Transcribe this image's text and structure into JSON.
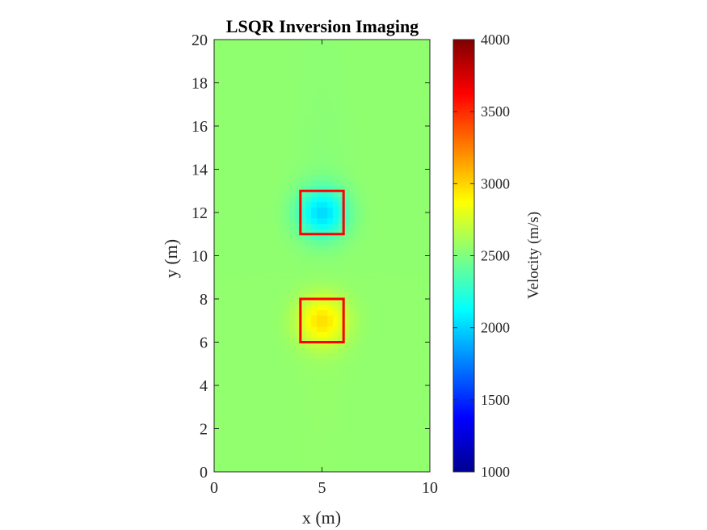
{
  "chart_data": {
    "type": "heatmap",
    "title": "LSQR Inversion Imaging",
    "xlabel": "x (m)",
    "ylabel": "y (m)",
    "xlim": [
      0,
      10
    ],
    "ylim": [
      0,
      20
    ],
    "x_ticks": [
      "0",
      "5",
      "10"
    ],
    "y_ticks": [
      "0",
      "2",
      "4",
      "6",
      "8",
      "10",
      "12",
      "14",
      "16",
      "18",
      "20"
    ],
    "colorbar": {
      "label": "Velocity (m/s)",
      "clim": [
        1000,
        4000
      ],
      "ticks": [
        "1000",
        "1500",
        "2000",
        "2500",
        "3000",
        "3500",
        "4000"
      ],
      "colormap": "jet"
    },
    "background_velocity": 2550,
    "anomalies": [
      {
        "center": [
          5,
          12
        ],
        "peak_velocity": 2050,
        "box": {
          "x": [
            4,
            6
          ],
          "y": [
            11,
            13
          ]
        }
      },
      {
        "center": [
          5,
          7
        ],
        "peak_velocity": 2950,
        "box": {
          "x": [
            4,
            6
          ],
          "y": [
            6,
            8
          ]
        }
      }
    ],
    "outline_color": "#ff0000"
  }
}
